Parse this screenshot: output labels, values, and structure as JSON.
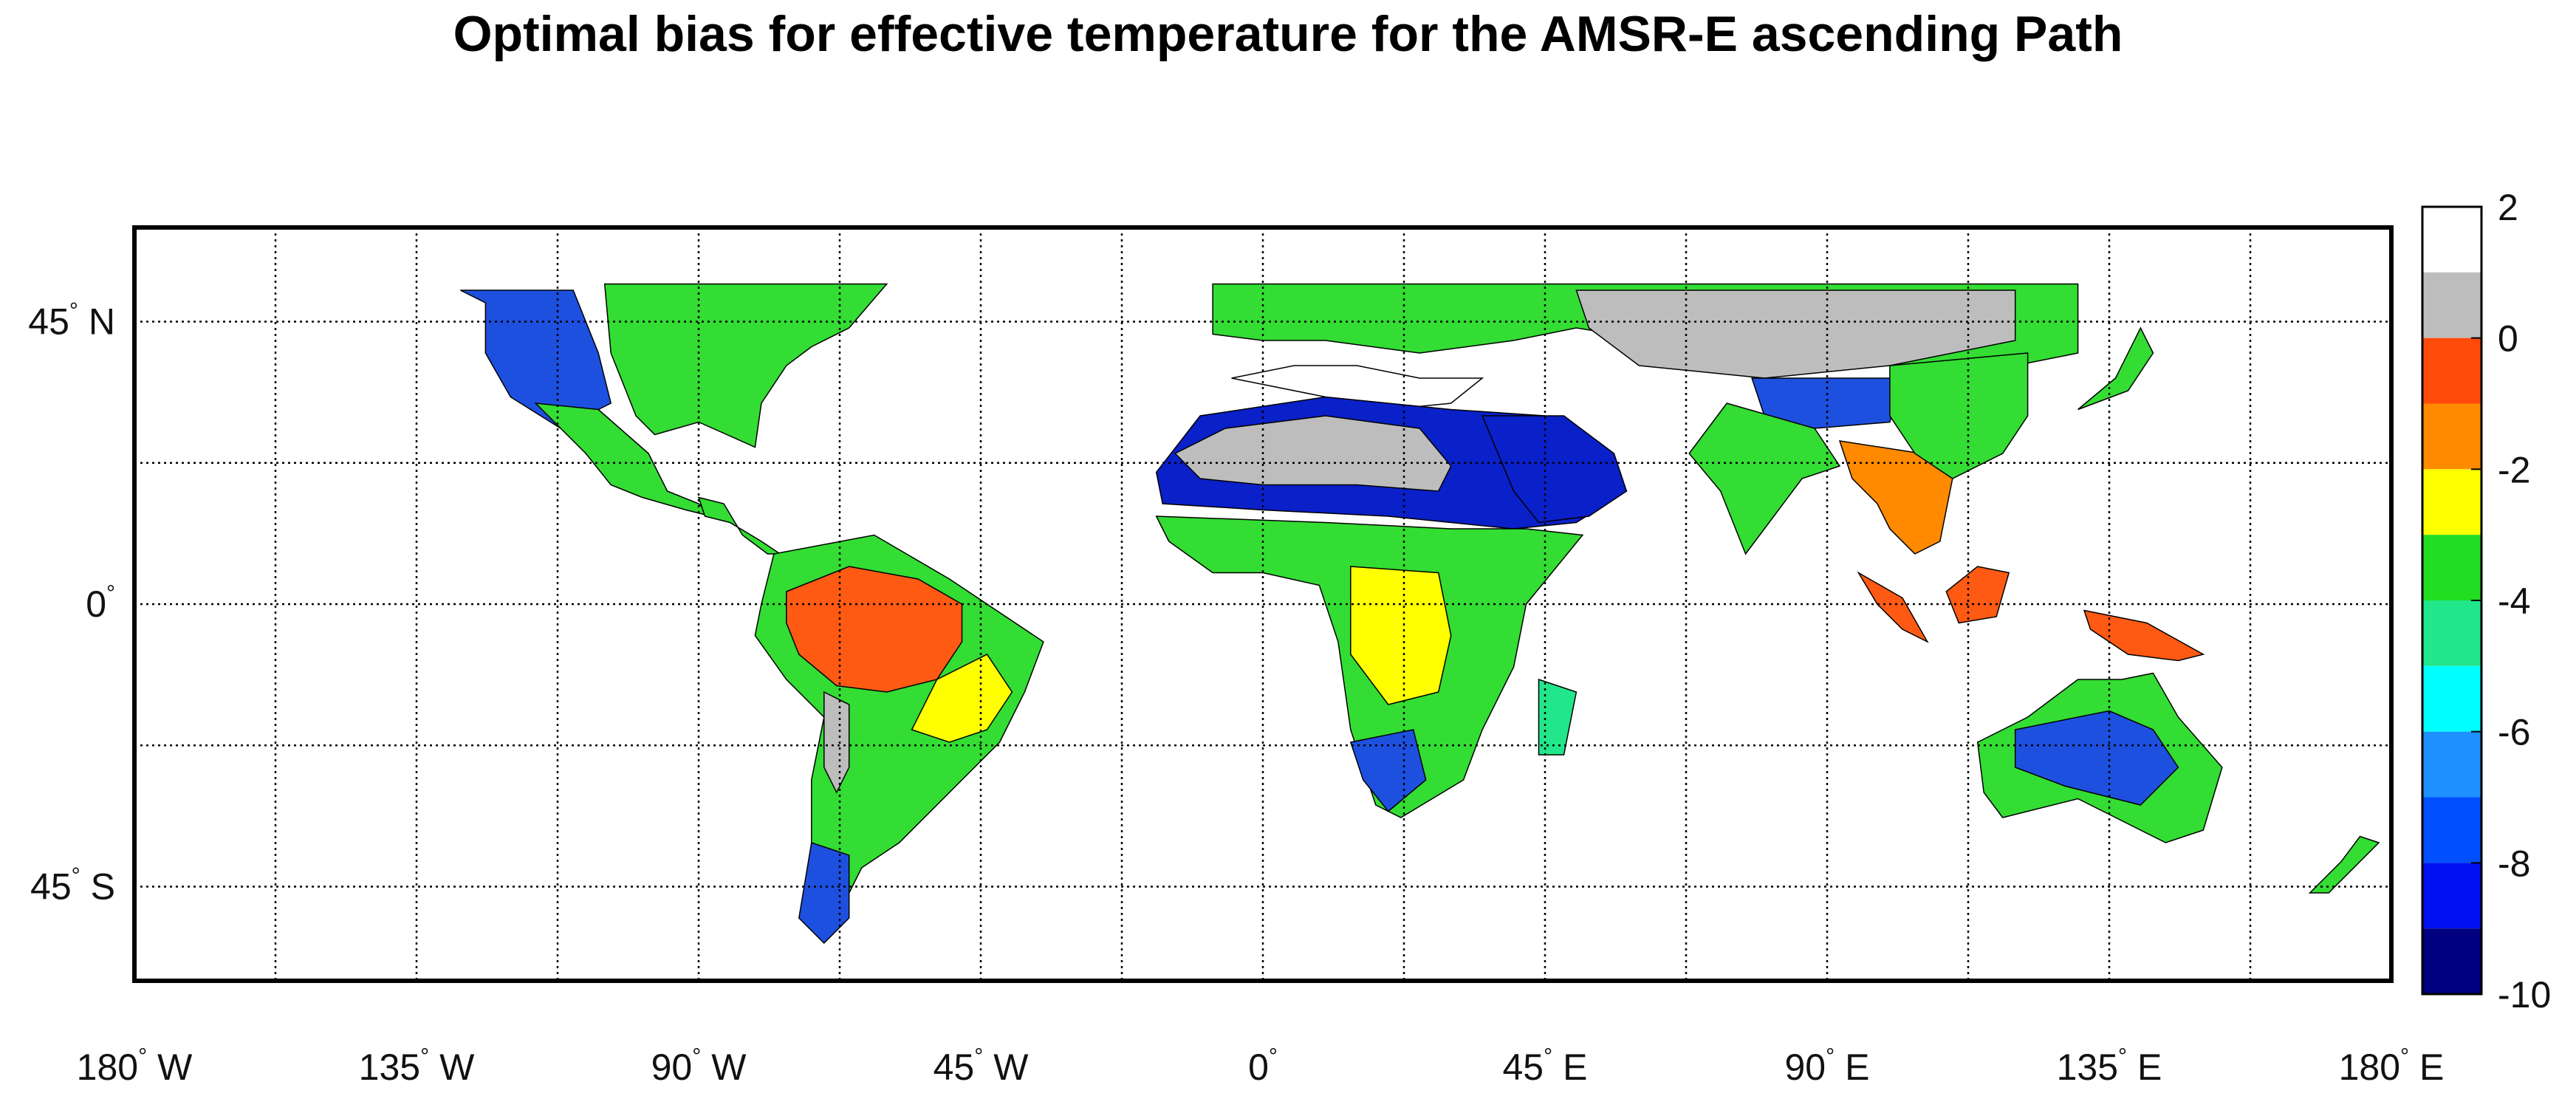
{
  "title": "Optimal bias for effective temperature for the AMSR-E ascending Path",
  "map": {
    "projection": "equirectangular",
    "lon_range": [
      -180,
      180
    ],
    "lat_range": [
      -60,
      60
    ],
    "gridlines": "dotted every 22.5 degrees",
    "lon_ticks": [
      {
        "value": -180,
        "num": "180",
        "hemi": "W"
      },
      {
        "value": -135,
        "num": "135",
        "hemi": "W"
      },
      {
        "value": -90,
        "num": "90",
        "hemi": "W"
      },
      {
        "value": -45,
        "num": "45",
        "hemi": "W"
      },
      {
        "value": 0,
        "num": "0",
        "hemi": ""
      },
      {
        "value": 45,
        "num": "45",
        "hemi": "E"
      },
      {
        "value": 90,
        "num": "90",
        "hemi": "E"
      },
      {
        "value": 135,
        "num": "135",
        "hemi": "E"
      },
      {
        "value": 180,
        "num": "180",
        "hemi": "E"
      }
    ],
    "lat_ticks": [
      {
        "value": 45,
        "num": "45",
        "hemi": "N"
      },
      {
        "value": 0,
        "num": "0",
        "hemi": ""
      },
      {
        "value": -45,
        "num": "45",
        "hemi": "S"
      }
    ]
  },
  "colorbar": {
    "range": [
      -10,
      2
    ],
    "tick_labels": [
      "2",
      "0",
      "-2",
      "-4",
      "-6",
      "-8",
      "-10"
    ],
    "tick_values": [
      2,
      0,
      -2,
      -4,
      -6,
      -8,
      -10
    ],
    "bins": [
      {
        "from": 1,
        "to": 2,
        "color": "#ffffff"
      },
      {
        "from": 0,
        "to": 1,
        "color": "#bdbdbd"
      },
      {
        "from": -1,
        "to": 0,
        "color": "#ff4a0a"
      },
      {
        "from": -2,
        "to": -1,
        "color": "#ff8a00"
      },
      {
        "from": -3,
        "to": -2,
        "color": "#ffff00"
      },
      {
        "from": -4,
        "to": -3,
        "color": "#22dd22"
      },
      {
        "from": -5,
        "to": -4,
        "color": "#22e68a"
      },
      {
        "from": -6,
        "to": -5,
        "color": "#00ffff"
      },
      {
        "from": -7,
        "to": -6,
        "color": "#1e90ff"
      },
      {
        "from": -8,
        "to": -7,
        "color": "#0050ff"
      },
      {
        "from": -9,
        "to": -8,
        "color": "#0010f0"
      },
      {
        "from": -10,
        "to": -9,
        "color": "#000080"
      }
    ]
  },
  "regions": [
    {
      "name": "north-america-west",
      "color": "#1e50e0",
      "outline": [
        [
          -128,
          50
        ],
        [
          -110,
          50
        ],
        [
          -106,
          40
        ],
        [
          -104,
          32
        ],
        [
          -112,
          28
        ],
        [
          -120,
          33
        ],
        [
          -124,
          40
        ],
        [
          -124,
          48
        ]
      ]
    },
    {
      "name": "north-america-east",
      "color": "#33dd33",
      "outline": [
        [
          -105,
          51
        ],
        [
          -60,
          51
        ],
        [
          -66,
          44
        ],
        [
          -72,
          41
        ],
        [
          -76,
          38
        ],
        [
          -80,
          32
        ],
        [
          -81,
          25
        ],
        [
          -90,
          29
        ],
        [
          -97,
          27
        ],
        [
          -100,
          30
        ],
        [
          -104,
          40
        ]
      ]
    },
    {
      "name": "mexico",
      "color": "#33dd33",
      "outline": [
        [
          -116,
          32
        ],
        [
          -106,
          31
        ],
        [
          -98,
          24
        ],
        [
          -95,
          18
        ],
        [
          -90,
          16
        ],
        [
          -88,
          14
        ],
        [
          -92,
          15
        ],
        [
          -99,
          17
        ],
        [
          -104,
          19
        ],
        [
          -108,
          24
        ],
        [
          -112,
          28
        ]
      ]
    },
    {
      "name": "central-america",
      "color": "#33dd33",
      "outline": [
        [
          -90,
          17
        ],
        [
          -86,
          16
        ],
        [
          -83,
          11
        ],
        [
          -79,
          8
        ],
        [
          -77,
          8
        ],
        [
          -80,
          10
        ],
        [
          -85,
          13
        ],
        [
          -89,
          14
        ]
      ]
    },
    {
      "name": "south-america-green",
      "color": "#33dd33",
      "outline": [
        [
          -80,
          0
        ],
        [
          -78,
          8
        ],
        [
          -62,
          11
        ],
        [
          -50,
          4
        ],
        [
          -35,
          -6
        ],
        [
          -38,
          -14
        ],
        [
          -42,
          -22
        ],
        [
          -48,
          -28
        ],
        [
          -58,
          -38
        ],
        [
          -64,
          -42
        ],
        [
          -68,
          -50
        ],
        [
          -70,
          -46
        ],
        [
          -72,
          -38
        ],
        [
          -72,
          -28
        ],
        [
          -70,
          -18
        ],
        [
          -76,
          -12
        ],
        [
          -81,
          -5
        ]
      ]
    },
    {
      "name": "amazon",
      "color": "#ff5a14",
      "outline": [
        [
          -76,
          2
        ],
        [
          -66,
          6
        ],
        [
          -55,
          4
        ],
        [
          -48,
          0
        ],
        [
          -48,
          -6
        ],
        [
          -52,
          -12
        ],
        [
          -60,
          -14
        ],
        [
          -68,
          -13
        ],
        [
          -74,
          -8
        ],
        [
          -76,
          -3
        ]
      ]
    },
    {
      "name": "south-america-yellow",
      "color": "#ffff00",
      "outline": [
        [
          -52,
          -12
        ],
        [
          -44,
          -8
        ],
        [
          -40,
          -14
        ],
        [
          -44,
          -20
        ],
        [
          -50,
          -22
        ],
        [
          -56,
          -20
        ]
      ]
    },
    {
      "name": "andes",
      "color": "#bdbdbd",
      "outline": [
        [
          -70,
          -14
        ],
        [
          -66,
          -16
        ],
        [
          -66,
          -26
        ],
        [
          -68,
          -30
        ],
        [
          -70,
          -26
        ]
      ]
    },
    {
      "name": "patagonia",
      "color": "#1e50e0",
      "outline": [
        [
          -72,
          -38
        ],
        [
          -66,
          -40
        ],
        [
          -66,
          -50
        ],
        [
          -70,
          -54
        ],
        [
          -74,
          -50
        ]
      ]
    },
    {
      "name": "eurasia-north",
      "color": "#33dd33",
      "outline": [
        [
          -8,
          51
        ],
        [
          130,
          51
        ],
        [
          130,
          40
        ],
        [
          120,
          38
        ],
        [
          100,
          38
        ],
        [
          75,
          40
        ],
        [
          50,
          44
        ],
        [
          40,
          42
        ],
        [
          25,
          40
        ],
        [
          10,
          42
        ],
        [
          0,
          42
        ],
        [
          -8,
          43
        ]
      ]
    },
    {
      "name": "mediterranean-sea",
      "color": "#ffffff",
      "outline": [
        [
          -5,
          36
        ],
        [
          5,
          38
        ],
        [
          15,
          38
        ],
        [
          25,
          36
        ],
        [
          35,
          36
        ],
        [
          30,
          32
        ],
        [
          20,
          31
        ],
        [
          10,
          33
        ],
        [
          0,
          35
        ]
      ]
    },
    {
      "name": "central-asia",
      "color": "#bdbdbd",
      "outline": [
        [
          50,
          50
        ],
        [
          120,
          50
        ],
        [
          120,
          42
        ],
        [
          100,
          38
        ],
        [
          80,
          36
        ],
        [
          60,
          38
        ],
        [
          52,
          44
        ]
      ]
    },
    {
      "name": "tibet",
      "color": "#1e50e0",
      "outline": [
        [
          78,
          36
        ],
        [
          102,
          36
        ],
        [
          100,
          29
        ],
        [
          88,
          28
        ],
        [
          80,
          30
        ]
      ]
    },
    {
      "name": "sahara-blue",
      "color": "#0a20c8",
      "outline": [
        [
          -17,
          21
        ],
        [
          -10,
          30
        ],
        [
          10,
          33
        ],
        [
          30,
          31
        ],
        [
          45,
          30
        ],
        [
          55,
          24
        ],
        [
          58,
          18
        ],
        [
          50,
          13
        ],
        [
          40,
          12
        ],
        [
          20,
          14
        ],
        [
          0,
          15
        ],
        [
          -16,
          16
        ]
      ]
    },
    {
      "name": "sahara-grey",
      "color": "#bdbdbd",
      "outline": [
        [
          -14,
          24
        ],
        [
          -6,
          28
        ],
        [
          10,
          30
        ],
        [
          25,
          28
        ],
        [
          30,
          22
        ],
        [
          28,
          18
        ],
        [
          15,
          19
        ],
        [
          0,
          19
        ],
        [
          -10,
          20
        ]
      ]
    },
    {
      "name": "africa-green",
      "color": "#33dd33",
      "outline": [
        [
          -17,
          14
        ],
        [
          10,
          13
        ],
        [
          30,
          12
        ],
        [
          42,
          12
        ],
        [
          51,
          11
        ],
        [
          42,
          0
        ],
        [
          40,
          -10
        ],
        [
          35,
          -20
        ],
        [
          32,
          -28
        ],
        [
          22,
          -34
        ],
        [
          18,
          -32
        ],
        [
          14,
          -20
        ],
        [
          12,
          -6
        ],
        [
          9,
          3
        ],
        [
          0,
          5
        ],
        [
          -8,
          5
        ],
        [
          -15,
          10
        ]
      ]
    },
    {
      "name": "africa-yellow",
      "color": "#ffff00",
      "outline": [
        [
          14,
          6
        ],
        [
          28,
          5
        ],
        [
          30,
          -5
        ],
        [
          28,
          -14
        ],
        [
          20,
          -16
        ],
        [
          14,
          -8
        ]
      ]
    },
    {
      "name": "south-africa-blue",
      "color": "#1e50e0",
      "outline": [
        [
          14,
          -22
        ],
        [
          24,
          -20
        ],
        [
          26,
          -28
        ],
        [
          20,
          -33
        ],
        [
          16,
          -28
        ]
      ]
    },
    {
      "name": "madagascar",
      "color": "#22e68a",
      "outline": [
        [
          44,
          -12
        ],
        [
          50,
          -14
        ],
        [
          48,
          -24
        ],
        [
          44,
          -24
        ]
      ]
    },
    {
      "name": "arabia",
      "color": "#0a20c8",
      "outline": [
        [
          35,
          30
        ],
        [
          48,
          30
        ],
        [
          56,
          24
        ],
        [
          58,
          18
        ],
        [
          52,
          14
        ],
        [
          44,
          13
        ],
        [
          40,
          18
        ]
      ]
    },
    {
      "name": "india",
      "color": "#33dd33",
      "outline": [
        [
          68,
          24
        ],
        [
          74,
          32
        ],
        [
          88,
          28
        ],
        [
          92,
          22
        ],
        [
          86,
          20
        ],
        [
          80,
          12
        ],
        [
          77,
          8
        ],
        [
          73,
          18
        ]
      ]
    },
    {
      "name": "southeast-asia",
      "color": "#ff8a00",
      "outline": [
        [
          92,
          26
        ],
        [
          105,
          24
        ],
        [
          110,
          20
        ],
        [
          108,
          10
        ],
        [
          104,
          8
        ],
        [
          100,
          12
        ],
        [
          98,
          16
        ],
        [
          94,
          20
        ]
      ]
    },
    {
      "name": "china-south",
      "color": "#33dd33",
      "outline": [
        [
          100,
          38
        ],
        [
          122,
          40
        ],
        [
          122,
          30
        ],
        [
          118,
          24
        ],
        [
          110,
          20
        ],
        [
          104,
          24
        ],
        [
          100,
          30
        ]
      ]
    },
    {
      "name": "japan",
      "color": "#33dd33",
      "outline": [
        [
          130,
          31
        ],
        [
          138,
          34
        ],
        [
          142,
          40
        ],
        [
          140,
          44
        ],
        [
          136,
          36
        ]
      ]
    },
    {
      "name": "sumatra",
      "color": "#ff5a14",
      "outline": [
        [
          95,
          5
        ],
        [
          102,
          1
        ],
        [
          106,
          -6
        ],
        [
          102,
          -4
        ],
        [
          98,
          0
        ]
      ]
    },
    {
      "name": "borneo",
      "color": "#ff5a14",
      "outline": [
        [
          109,
          2
        ],
        [
          114,
          6
        ],
        [
          119,
          5
        ],
        [
          117,
          -2
        ],
        [
          111,
          -3
        ]
      ]
    },
    {
      "name": "new-guinea",
      "color": "#ff5a14",
      "outline": [
        [
          131,
          -1
        ],
        [
          141,
          -3
        ],
        [
          150,
          -8
        ],
        [
          146,
          -9
        ],
        [
          138,
          -8
        ],
        [
          132,
          -4
        ]
      ]
    },
    {
      "name": "australia-green",
      "color": "#33dd33",
      "outline": [
        [
          114,
          -22
        ],
        [
          122,
          -18
        ],
        [
          130,
          -12
        ],
        [
          137,
          -12
        ],
        [
          142,
          -11
        ],
        [
          146,
          -18
        ],
        [
          153,
          -26
        ],
        [
          150,
          -36
        ],
        [
          144,
          -38
        ],
        [
          136,
          -34
        ],
        [
          130,
          -31
        ],
        [
          118,
          -34
        ],
        [
          115,
          -30
        ]
      ]
    },
    {
      "name": "australia-blue",
      "color": "#1e50e0",
      "outline": [
        [
          120,
          -20
        ],
        [
          135,
          -17
        ],
        [
          142,
          -20
        ],
        [
          146,
          -26
        ],
        [
          140,
          -32
        ],
        [
          128,
          -29
        ],
        [
          120,
          -26
        ]
      ]
    },
    {
      "name": "new-zealand",
      "color": "#33dd33",
      "outline": [
        [
          167,
          -46
        ],
        [
          172,
          -41
        ],
        [
          175,
          -37
        ],
        [
          178,
          -38
        ],
        [
          174,
          -42
        ],
        [
          170,
          -46
        ]
      ]
    }
  ]
}
